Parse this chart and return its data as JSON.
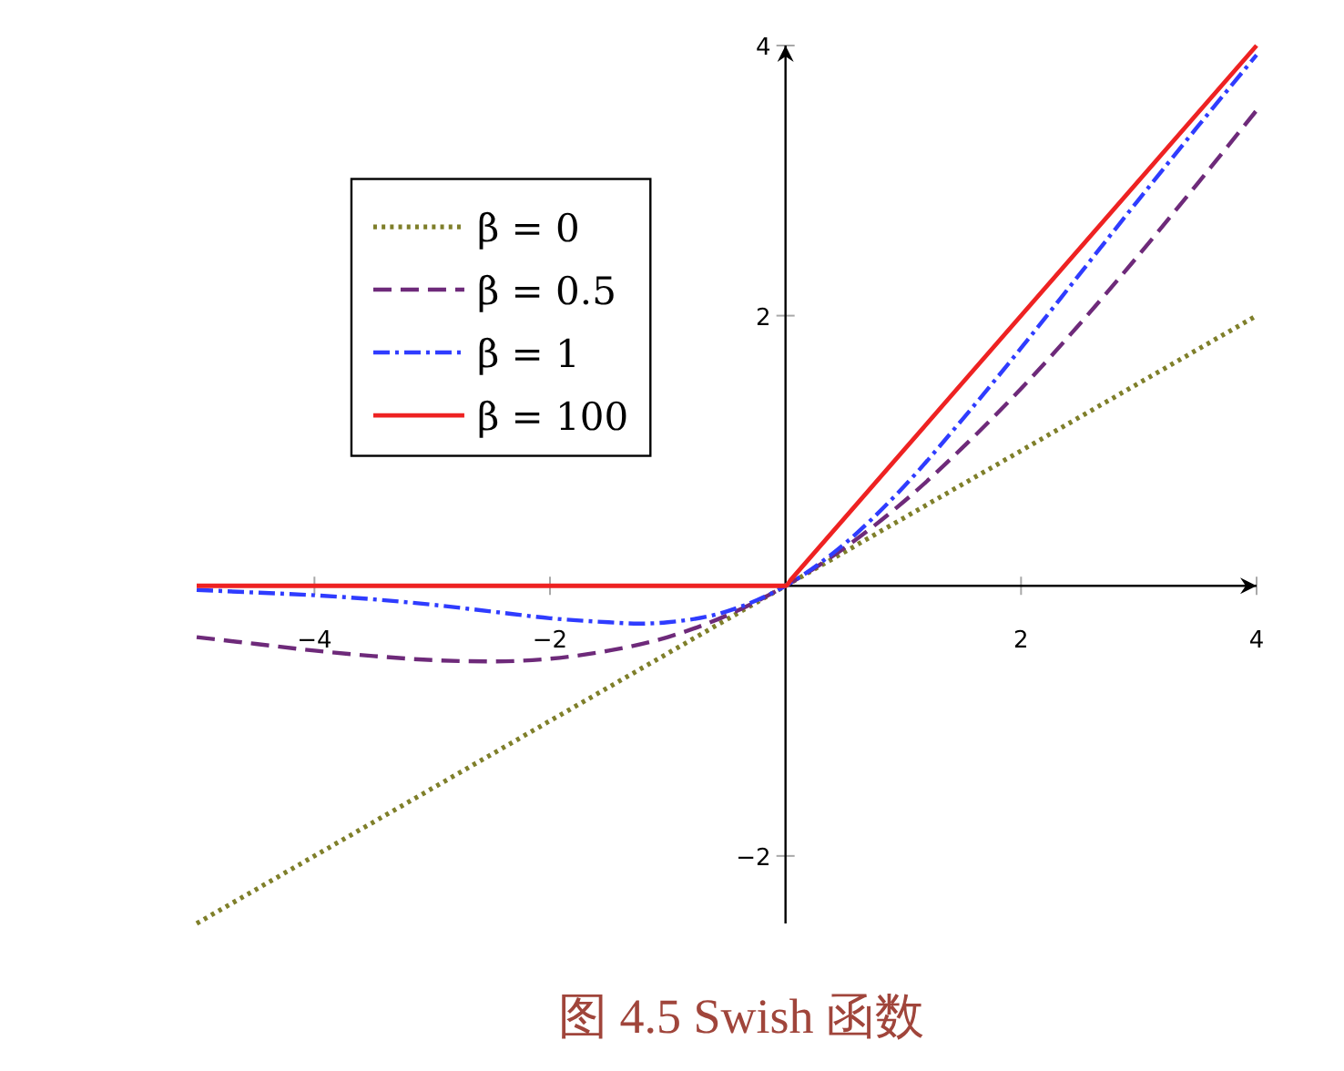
{
  "chart_data": {
    "type": "line",
    "title": "图 4.5 Swish 函数",
    "xlim": [
      -5,
      4
    ],
    "ylim": [
      -2.5,
      4
    ],
    "xticks": [
      -4,
      -2,
      2,
      4
    ],
    "yticks": [
      -2,
      2,
      4
    ],
    "legend": "top left",
    "series": [
      {
        "name": "β = 0",
        "color": "#7f7f2a",
        "line_style": "dotted",
        "x": [
          -5,
          4
        ],
        "values": [
          -2.5,
          2
        ]
      },
      {
        "name": "β = 0.5",
        "color": "#6e2a7a",
        "line_style": "dashed",
        "x": [
          -5,
          -4.5,
          -4,
          -3.5,
          -3,
          -2.5,
          -2,
          -1.5,
          -1,
          -0.5,
          0,
          0.5,
          1,
          1.5,
          2,
          2.5,
          3,
          3.5,
          4
        ],
        "values": [
          -0.38,
          -0.43,
          -0.48,
          -0.52,
          -0.55,
          -0.56,
          -0.54,
          -0.48,
          -0.38,
          -0.22,
          0,
          0.28,
          0.62,
          1.02,
          1.46,
          1.94,
          2.45,
          2.98,
          3.52
        ]
      },
      {
        "name": "β = 1",
        "color": "#2f3cff",
        "line_style": "dashdot",
        "x": [
          -5,
          -4.5,
          -4,
          -3.5,
          -3,
          -2.5,
          -2,
          -1.5,
          -1.25,
          -1,
          -0.5,
          0,
          0.5,
          1,
          1.5,
          2,
          2.5,
          3,
          3.5,
          4
        ],
        "values": [
          -0.03,
          -0.05,
          -0.07,
          -0.1,
          -0.14,
          -0.19,
          -0.24,
          -0.27,
          -0.28,
          -0.27,
          -0.19,
          0,
          0.31,
          0.73,
          1.23,
          1.76,
          2.31,
          2.86,
          3.4,
          3.93
        ]
      },
      {
        "name": "β = 100",
        "color": "#ee2222",
        "line_style": "solid",
        "x": [
          -5,
          0,
          0.05,
          4
        ],
        "values": [
          0,
          0,
          0.05,
          4
        ]
      }
    ]
  }
}
